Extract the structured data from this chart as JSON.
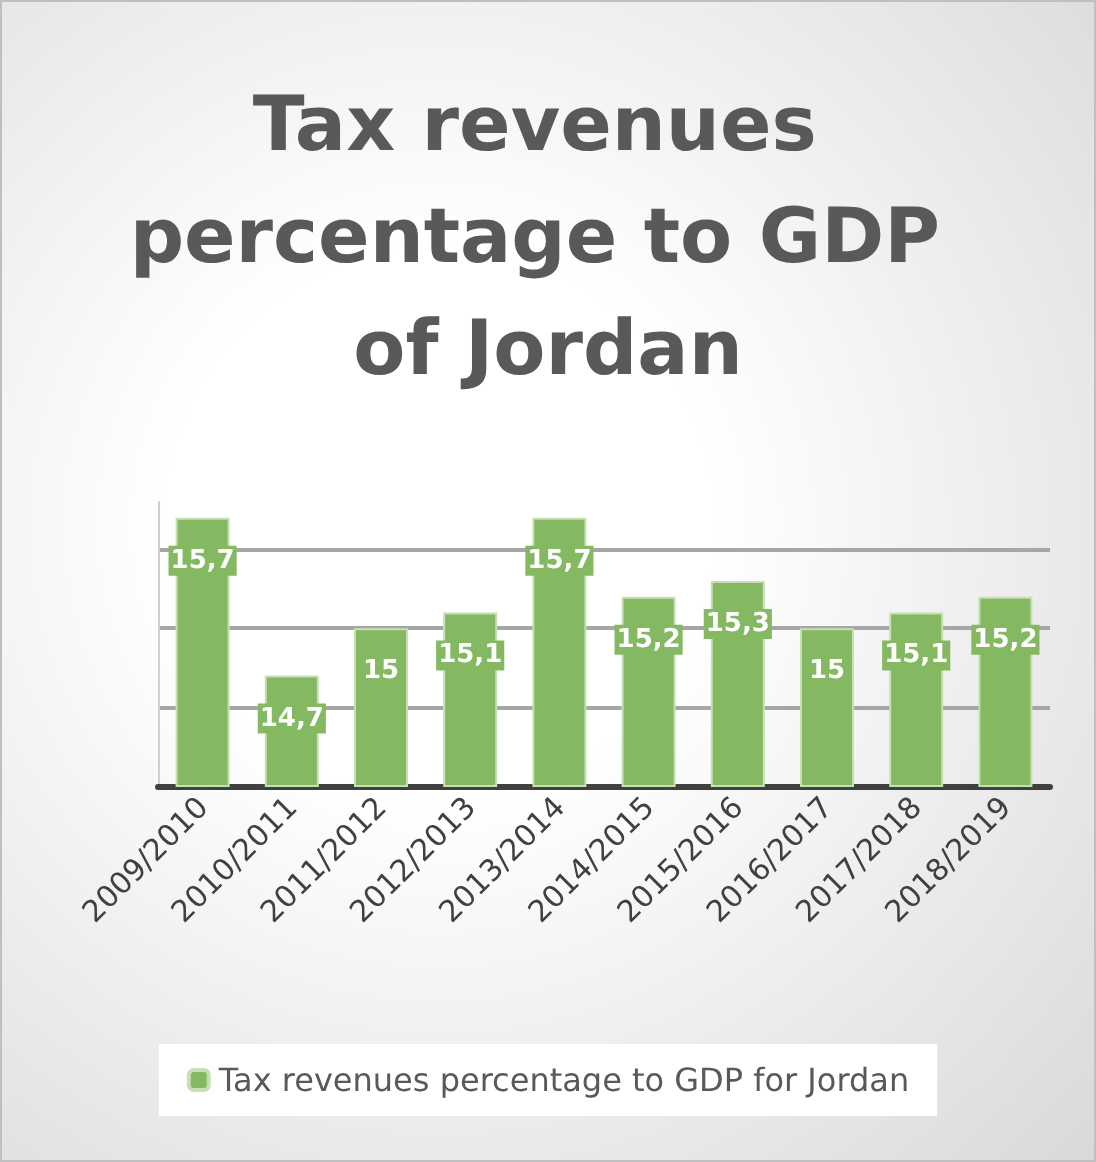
{
  "chart_data": {
    "type": "bar",
    "title": "Tax revenues percentage to GDP of Jordan",
    "categories": [
      "2009/2010",
      "2010/2011",
      "2011/2012",
      "2012/2013",
      "2013/2014",
      "2014/2015",
      "2015/2016",
      "2016/2017",
      "2017/2018",
      "2018/2019"
    ],
    "series": [
      {
        "name": "Tax revenues percentage to GDP for Jordan",
        "color": "#84b962",
        "values": [
          15.7,
          14.7,
          15,
          15.1,
          15.7,
          15.2,
          15.3,
          15,
          15.1,
          15.2
        ],
        "value_labels": [
          "15,7",
          "14,7",
          "15",
          "15,1",
          "15,7",
          "15,2",
          "15,3",
          "15",
          "15,1",
          "15,2"
        ]
      }
    ],
    "ylim": [
      14,
      15.8
    ],
    "yticks": [
      14,
      14.5,
      15,
      15.5
    ],
    "tick_labels": "x",
    "grid": "y",
    "legend": "bottom"
  }
}
